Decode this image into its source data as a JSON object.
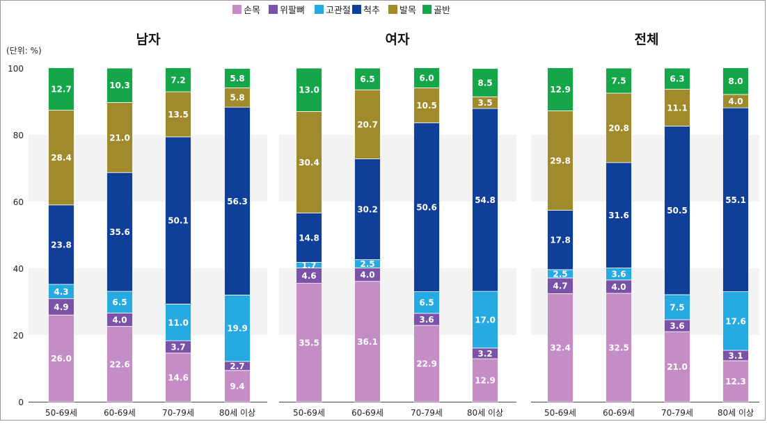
{
  "chart_data": {
    "type": "bar",
    "stacked": true,
    "unit_label": "(단위: %)",
    "ylim": [
      0,
      100
    ],
    "yticks": [
      0,
      20,
      40,
      60,
      80,
      100
    ],
    "grid": "alternating horizontal bands",
    "legend": "top-center",
    "legend_items": [
      "손목",
      "위팔뼈",
      "고관절",
      "척추",
      "발목",
      "골반"
    ],
    "colors": {
      "손목": "#c48dc6",
      "위팔뼈": "#7a52a8",
      "고관절": "#27a9e1",
      "척추": "#0f3f98",
      "발목": "#a08a2c",
      "골반": "#15a64a"
    },
    "panels": [
      {
        "title": "남자",
        "categories": [
          "50-69세",
          "60-69세",
          "70-79세",
          "80세 이상"
        ],
        "series": [
          {
            "name": "손목",
            "values": [
              26.0,
              22.6,
              14.6,
              9.4
            ]
          },
          {
            "name": "위팔뼈",
            "values": [
              4.9,
              4.0,
              3.7,
              2.7
            ]
          },
          {
            "name": "고관절",
            "values": [
              4.3,
              6.5,
              11.0,
              19.9
            ]
          },
          {
            "name": "척추",
            "values": [
              23.8,
              35.6,
              50.1,
              56.3
            ]
          },
          {
            "name": "발목",
            "values": [
              28.4,
              21.0,
              13.5,
              5.8
            ]
          },
          {
            "name": "골반",
            "values": [
              12.7,
              10.3,
              7.2,
              5.8
            ]
          }
        ]
      },
      {
        "title": "여자",
        "categories": [
          "50-69세",
          "60-69세",
          "70-79세",
          "80세 이상"
        ],
        "series": [
          {
            "name": "손목",
            "values": [
              35.5,
              36.1,
              22.9,
              12.9
            ]
          },
          {
            "name": "위팔뼈",
            "values": [
              4.6,
              4.0,
              3.6,
              3.2
            ]
          },
          {
            "name": "고관절",
            "values": [
              1.7,
              2.5,
              6.5,
              17.0
            ]
          },
          {
            "name": "척추",
            "values": [
              14.8,
              30.2,
              50.6,
              54.8
            ]
          },
          {
            "name": "발목",
            "values": [
              30.4,
              20.7,
              10.5,
              3.5
            ]
          },
          {
            "name": "골반",
            "values": [
              13.0,
              6.5,
              6.0,
              8.5
            ]
          }
        ]
      },
      {
        "title": "전체",
        "categories": [
          "50-69세",
          "60-69세",
          "70-79세",
          "80세 이상"
        ],
        "series": [
          {
            "name": "손목",
            "values": [
              32.4,
              32.5,
              21.0,
              12.3
            ]
          },
          {
            "name": "위팔뼈",
            "values": [
              4.7,
              4.0,
              3.6,
              3.1
            ]
          },
          {
            "name": "고관절",
            "values": [
              2.5,
              3.6,
              7.5,
              17.6
            ]
          },
          {
            "name": "척추",
            "values": [
              17.8,
              31.6,
              50.5,
              55.1
            ]
          },
          {
            "name": "발목",
            "values": [
              29.8,
              20.8,
              11.1,
              4.0
            ]
          },
          {
            "name": "골반",
            "values": [
              12.9,
              7.5,
              6.3,
              8.0
            ]
          }
        ]
      }
    ]
  }
}
